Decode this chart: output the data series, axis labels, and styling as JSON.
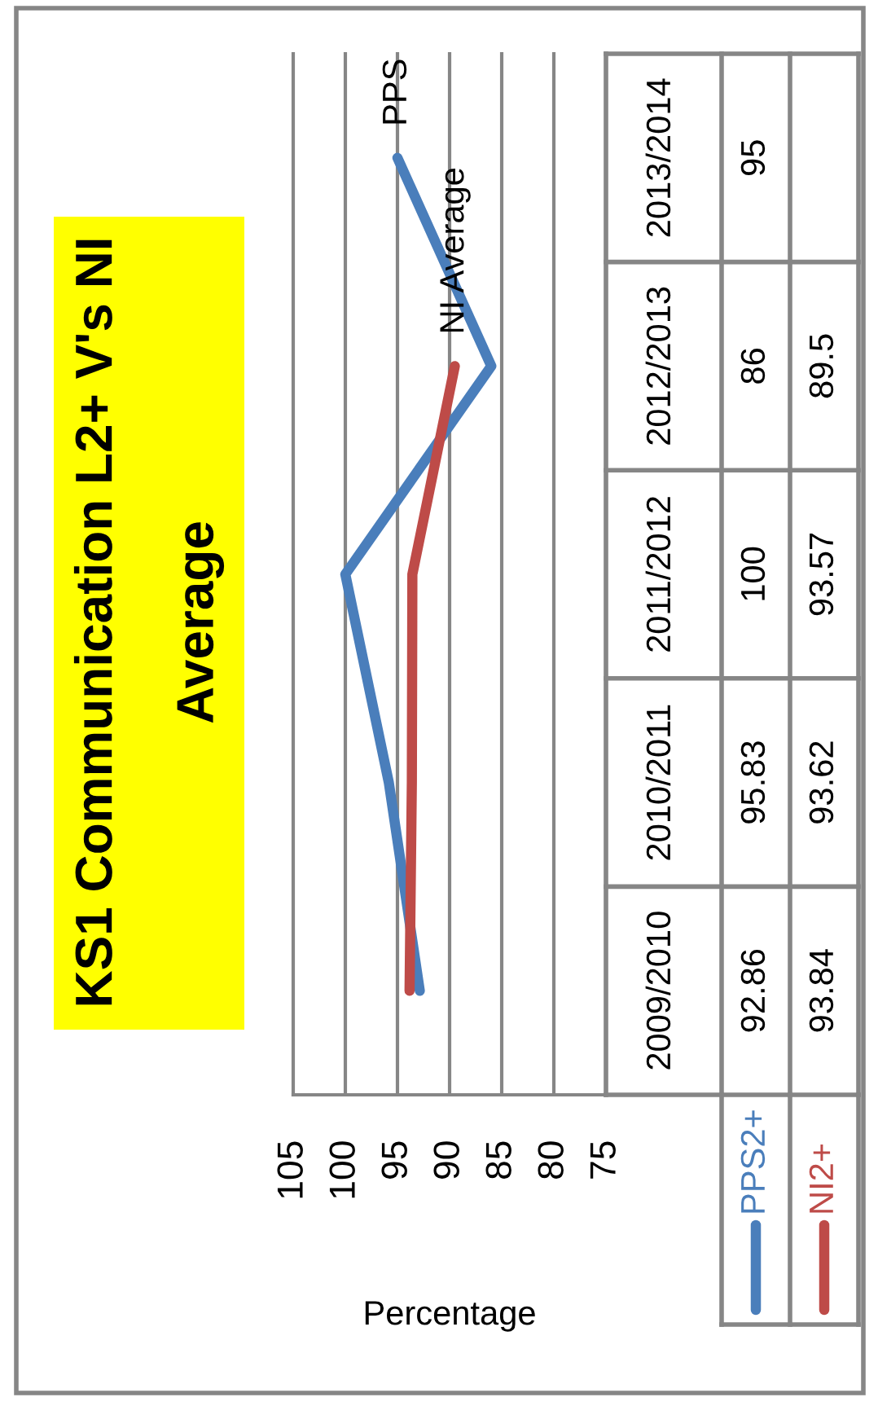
{
  "chart_data": {
    "type": "line",
    "orientation": "horizontal",
    "title": "KS1 Communication L2+ V's NI Average",
    "xlabel": "Percentage",
    "categories": [
      "2013/2014",
      "2012/2013",
      "2011/2012",
      "2010/2011",
      "2009/2010"
    ],
    "series": [
      {
        "name": "PPS2+",
        "color": "#4a7ebb",
        "values": [
          95,
          86,
          100,
          95.83,
          92.86
        ]
      },
      {
        "name": "NI2+",
        "color": "#be4b48",
        "values": [
          null,
          89.5,
          93.57,
          93.62,
          93.84
        ]
      }
    ],
    "xlim": [
      105,
      75
    ],
    "xticks": [
      105,
      100,
      95,
      90,
      85,
      80,
      75
    ],
    "grid": "x",
    "legend": "bottom right",
    "data_labels": true,
    "annotations": [
      {
        "text": "PPS",
        "x": 95,
        "y": "2013/2014"
      },
      {
        "text": "NI Average",
        "x": 89.5,
        "y": "2012/2013"
      }
    ]
  }
}
